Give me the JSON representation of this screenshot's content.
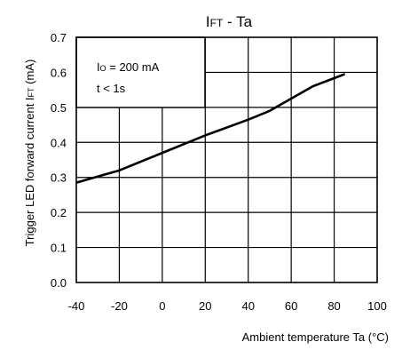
{
  "chart_data": {
    "type": "line",
    "title_main": "I",
    "title_sub": "FT",
    "title_rest": " - Ta",
    "xlabel": "Ambient temperature Ta (°C)",
    "ylabel_main": "Trigger LED forward current I",
    "ylabel_sub": "FT",
    "ylabel_rest": " (mA)",
    "xlim": [
      -40,
      100
    ],
    "ylim": [
      0.0,
      0.7
    ],
    "x_ticks": [
      -40,
      -20,
      0,
      20,
      40,
      60,
      80,
      100
    ],
    "x_tick_labels": [
      "-40",
      "-20",
      "0",
      "20",
      "40",
      "60",
      "80",
      "100"
    ],
    "y_ticks": [
      0.0,
      0.1,
      0.2,
      0.3,
      0.4,
      0.5,
      0.6,
      0.7
    ],
    "y_tick_labels": [
      "0.0",
      "0.1",
      "0.2",
      "0.3",
      "0.4",
      "0.5",
      "0.6",
      "0.7"
    ],
    "grid": true,
    "annotation_box": {
      "line1_main": "I",
      "line1_sub": "O",
      "line1_rest": " = 200 mA",
      "line2": "t < 1s"
    },
    "series": [
      {
        "x": [
          -40,
          -20,
          0,
          20,
          40,
          50,
          60,
          70,
          85
        ],
        "y": [
          0.285,
          0.32,
          0.37,
          0.42,
          0.465,
          0.49,
          0.525,
          0.56,
          0.595
        ]
      }
    ],
    "colors": {
      "line": "#000000",
      "grid": "#000000",
      "background": "#ffffff"
    }
  }
}
